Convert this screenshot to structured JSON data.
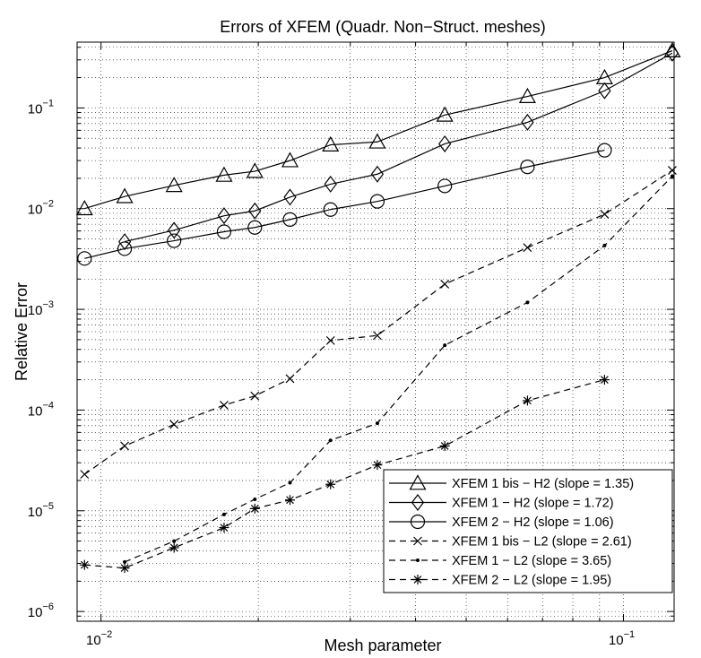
{
  "chart_data": {
    "type": "line",
    "title": "Errors of XFEM (Quadr. Non−Struct. meshes)",
    "xlabel": "Mesh parameter",
    "ylabel": "Relative Error",
    "xscale": "log",
    "yscale": "log",
    "xlim": [
      0.009,
      0.125
    ],
    "ylim": [
      8e-07,
      0.45
    ],
    "grid": true,
    "legend_position": "bottom-right",
    "xticks": [
      {
        "value": 0.01,
        "base": "10",
        "exp": "−2"
      },
      {
        "value": 0.1,
        "base": "10",
        "exp": "−1"
      }
    ],
    "yticks": [
      {
        "value": 1e-06,
        "base": "10",
        "exp": "−6"
      },
      {
        "value": 1e-05,
        "base": "10",
        "exp": "−5"
      },
      {
        "value": 0.0001,
        "base": "10",
        "exp": "−4"
      },
      {
        "value": 0.001,
        "base": "10",
        "exp": "−3"
      },
      {
        "value": 0.01,
        "base": "10",
        "exp": "−2"
      },
      {
        "value": 0.1,
        "base": "10",
        "exp": "−1"
      }
    ],
    "series": [
      {
        "name": "XFEM 1 bis − H2 (slope = 1.35)",
        "marker": "triangle",
        "dashed": false,
        "x": [
          0.0093,
          0.0111,
          0.0138,
          0.0172,
          0.0197,
          0.023,
          0.0275,
          0.0338,
          0.0455,
          0.0655,
          0.092,
          0.124
        ],
        "y": [
          0.01,
          0.0132,
          0.017,
          0.0215,
          0.0235,
          0.03,
          0.043,
          0.046,
          0.085,
          0.13,
          0.2,
          0.37
        ]
      },
      {
        "name": "XFEM 1 − H2 (slope = 1.72)",
        "marker": "diamond",
        "dashed": false,
        "x": [
          0.0111,
          0.0138,
          0.0172,
          0.0197,
          0.023,
          0.0275,
          0.0338,
          0.0455,
          0.0655,
          0.092,
          0.124
        ],
        "y": [
          0.0047,
          0.0061,
          0.0085,
          0.0095,
          0.013,
          0.0175,
          0.022,
          0.044,
          0.072,
          0.148,
          0.35
        ]
      },
      {
        "name": "XFEM 2 − H2 (slope = 1.06)",
        "marker": "circle",
        "dashed": false,
        "x": [
          0.0093,
          0.0111,
          0.0138,
          0.0172,
          0.0197,
          0.023,
          0.0275,
          0.0338,
          0.0455,
          0.0655,
          0.092
        ],
        "y": [
          0.0032,
          0.004,
          0.0048,
          0.0059,
          0.0065,
          0.0078,
          0.0098,
          0.0118,
          0.0168,
          0.026,
          0.038
        ]
      },
      {
        "name": "XFEM 1 bis − L2 (slope = 2.61)",
        "marker": "x",
        "dashed": true,
        "x": [
          0.0093,
          0.0111,
          0.0138,
          0.0172,
          0.0197,
          0.023,
          0.0275,
          0.0338,
          0.0455,
          0.0655,
          0.092,
          0.124
        ],
        "y": [
          2.3e-05,
          4.4e-05,
          7.2e-05,
          0.000112,
          0.000138,
          0.000205,
          0.00049,
          0.00055,
          0.00178,
          0.0041,
          0.0088,
          0.024
        ]
      },
      {
        "name": "XFEM 1 − L2 (slope = 3.65)",
        "marker": "dot",
        "dashed": true,
        "x": [
          0.0111,
          0.0138,
          0.0172,
          0.0197,
          0.023,
          0.0275,
          0.0338,
          0.0455,
          0.0655,
          0.092,
          0.124
        ],
        "y": [
          3.1e-06,
          5e-06,
          9.2e-06,
          1.3e-05,
          1.9e-05,
          5e-05,
          7.4e-05,
          0.00044,
          0.00117,
          0.0043,
          0.021
        ]
      },
      {
        "name": "XFEM 2 − L2 (slope = 1.95)",
        "marker": "star",
        "dashed": true,
        "x": [
          0.0093,
          0.0111,
          0.0138,
          0.0172,
          0.0197,
          0.023,
          0.0275,
          0.0338,
          0.0455,
          0.0655,
          0.092
        ],
        "y": [
          2.9e-06,
          2.7e-06,
          4.3e-06,
          6.8e-06,
          1.05e-05,
          1.28e-05,
          1.83e-05,
          2.85e-05,
          4.4e-05,
          0.000124,
          0.0002
        ]
      }
    ]
  }
}
